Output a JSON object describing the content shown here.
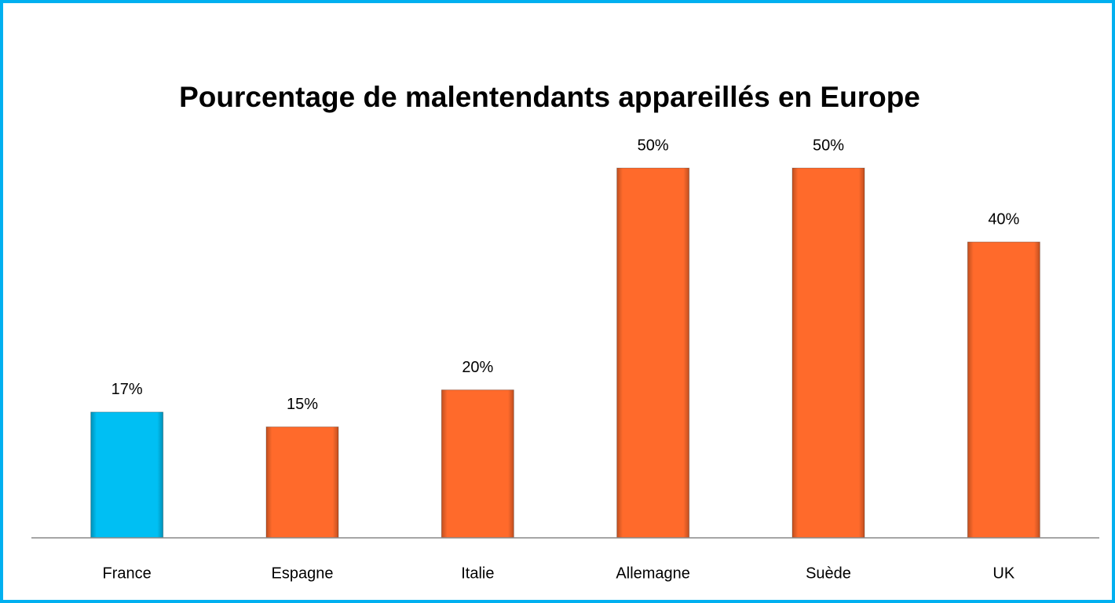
{
  "chart_data": {
    "type": "bar",
    "title": "Pourcentage de malentendants appareillés en Europe",
    "categories": [
      "France",
      "Espagne",
      "Italie",
      "Allemagne",
      "Suède",
      "UK"
    ],
    "values": [
      17,
      15,
      20,
      50,
      50,
      40
    ],
    "value_labels": [
      "17%",
      "15%",
      "20%",
      "50%",
      "50%",
      "40%"
    ],
    "colors": [
      "#00bff3",
      "#ff6a2b",
      "#ff6a2b",
      "#ff6a2b",
      "#ff6a2b",
      "#ff6a2b"
    ],
    "ylim": [
      0,
      50
    ]
  }
}
